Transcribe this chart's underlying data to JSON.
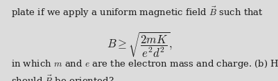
{
  "background_color": "#dcdcdc",
  "text_color": "#1a1a1a",
  "line1": "plate if we apply a uniform magnetic field $\\vec{B}$ such that",
  "formula": "$B \\geq \\sqrt{\\dfrac{2mK}{e^2d^2}},$",
  "line3": "in which $m$ and $e$ are the electron mass and charge. (b) How",
  "line4": "should $\\vec{B}$ be oriented?",
  "fontsize_text": 9.5,
  "fontsize_formula": 12.0,
  "fig_width": 4.02,
  "fig_height": 1.18,
  "dpi": 100
}
